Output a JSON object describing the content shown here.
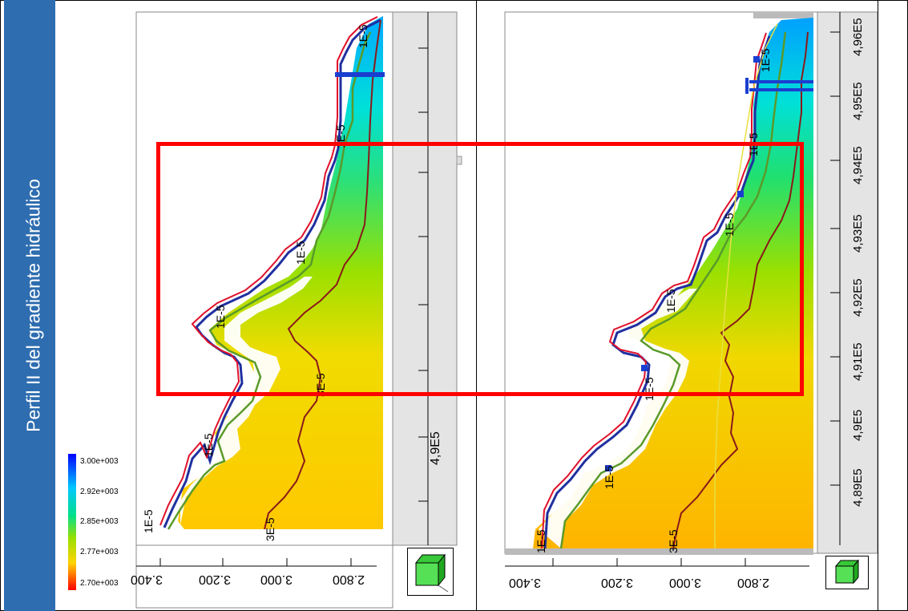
{
  "sidebar": {
    "title": "Perfil II del gradiente hidráulico"
  },
  "legend": {
    "labels": [
      "3.00e+003",
      "2.92e+003",
      "2.85e+003",
      "2.77e+003",
      "2.70e+003"
    ],
    "colors": [
      "#0000ff",
      "#00c8ff",
      "#00e08c",
      "#9be000",
      "#ff0000"
    ]
  },
  "left_panel": {
    "y_ticks": [
      "3.400",
      "3.200",
      "3.000",
      "2.800"
    ],
    "x_tick": "4,9E5",
    "contour_labels": [
      "1E-5",
      "1E-5",
      "1E-5",
      "1E-5",
      "1E-5",
      "1E-5",
      "3E-5",
      "3E-5"
    ]
  },
  "right_panel": {
    "y_ticks": [
      "3.400",
      "3.200",
      "3.000",
      "2.800"
    ],
    "x_ticks": [
      "4,96E5",
      "4,95E5",
      "4,94E5",
      "4,93E5",
      "4,92E5",
      "4,91E5",
      "4,9E5",
      "4,89E5"
    ],
    "contour_labels": [
      "1E-5",
      "1E-5",
      "1E-5",
      "1E-5",
      "1E-5",
      "1E-5",
      "1E-5",
      "3E-5"
    ]
  }
}
